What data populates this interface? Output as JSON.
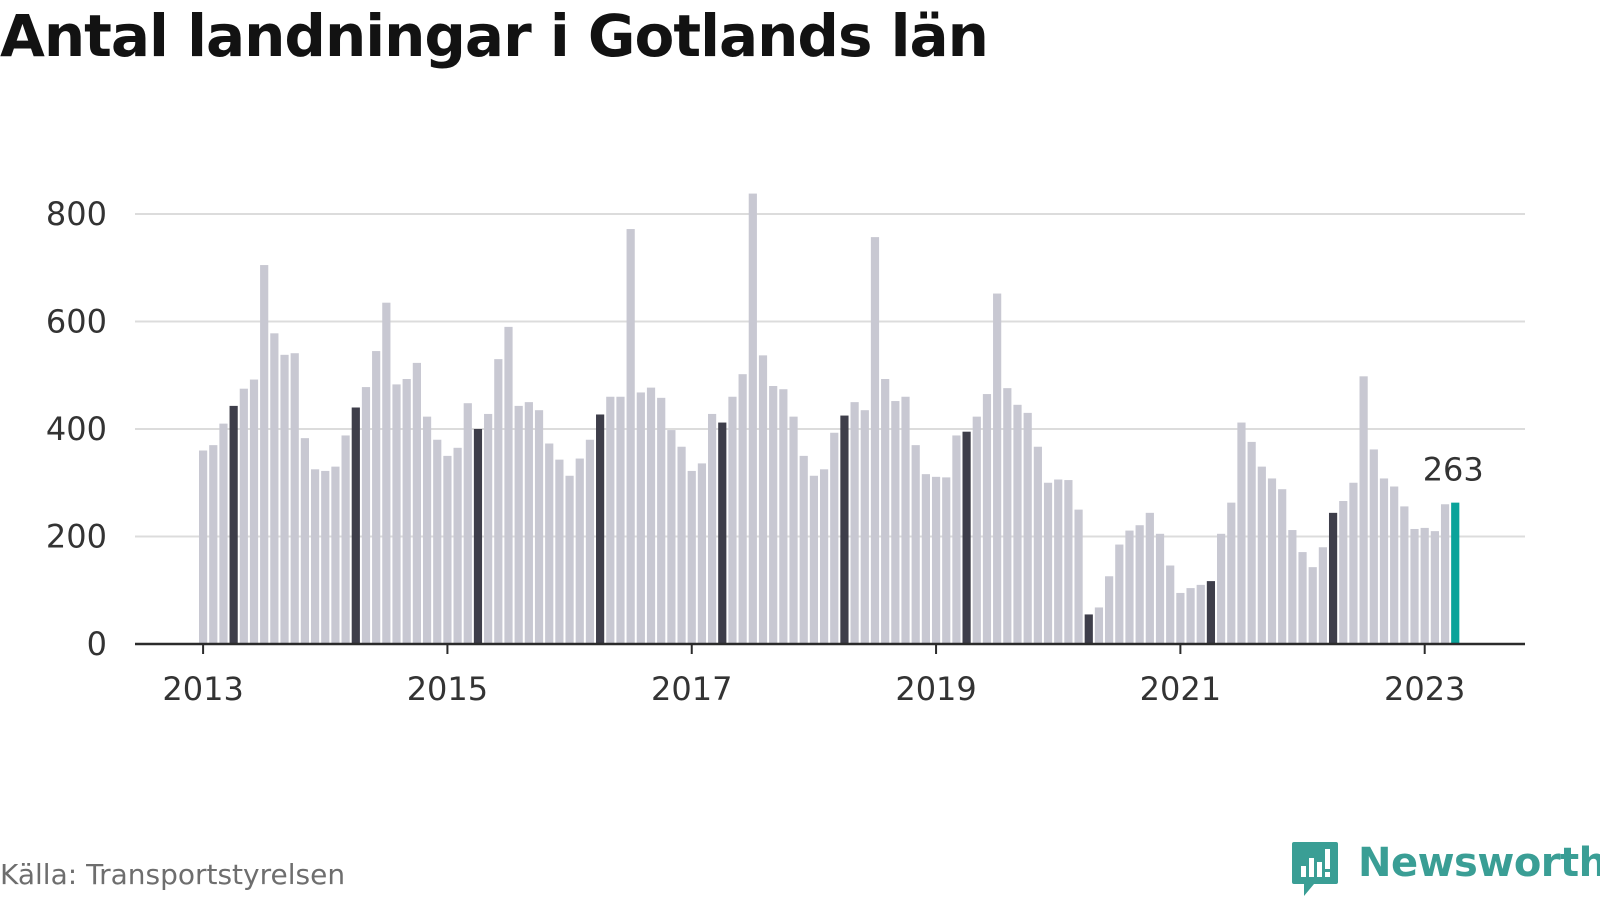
{
  "title": "Antal landningar i Gotlands län",
  "source": "Källa: Transportstyrelsen",
  "logo": {
    "name": "Newsworthy"
  },
  "colors": {
    "bar_default": "#c8c8d2",
    "bar_highlight": "#3e3e4a",
    "bar_latest": "#0aa39a",
    "gridline": "#dcdcdc",
    "axis": "#2b2b2b",
    "logo": "#3a9e95"
  },
  "chart_data": {
    "type": "bar",
    "xlabel": "",
    "ylabel": "",
    "ylim": [
      0,
      840
    ],
    "yticks": [
      0,
      200,
      400,
      600,
      800
    ],
    "xtick_labels": [
      "2013",
      "2015",
      "2017",
      "2019",
      "2021",
      "2023"
    ],
    "grid": true,
    "start_month": "2013-01",
    "end_month": "2023-04",
    "highlight_note": "April of each year is highlighted dark; latest month (April 2023) highlighted teal",
    "annotation": {
      "label": "263",
      "month": "2023-04"
    },
    "values": [
      360,
      370,
      410,
      443,
      475,
      492,
      705,
      578,
      538,
      541,
      383,
      325,
      322,
      330,
      388,
      440,
      478,
      545,
      635,
      483,
      493,
      523,
      423,
      380,
      350,
      365,
      448,
      400,
      428,
      530,
      590,
      443,
      450,
      435,
      373,
      343,
      313,
      345,
      380,
      427,
      460,
      460,
      772,
      468,
      477,
      458,
      398,
      367,
      322,
      336,
      428,
      412,
      460,
      502,
      838,
      537,
      480,
      474,
      423,
      350,
      313,
      325,
      393,
      425,
      450,
      435,
      757,
      493,
      452,
      460,
      370,
      316,
      311,
      310,
      388,
      395,
      423,
      465,
      652,
      476,
      445,
      430,
      367,
      300,
      306,
      305,
      250,
      55,
      68,
      126,
      185,
      211,
      221,
      244,
      205,
      146,
      95,
      104,
      110,
      117,
      205,
      263,
      412,
      376,
      330,
      308,
      288,
      212,
      171,
      143,
      180,
      244,
      266,
      300,
      498,
      362,
      308,
      293,
      256,
      214,
      216,
      210,
      260,
      263
    ]
  }
}
